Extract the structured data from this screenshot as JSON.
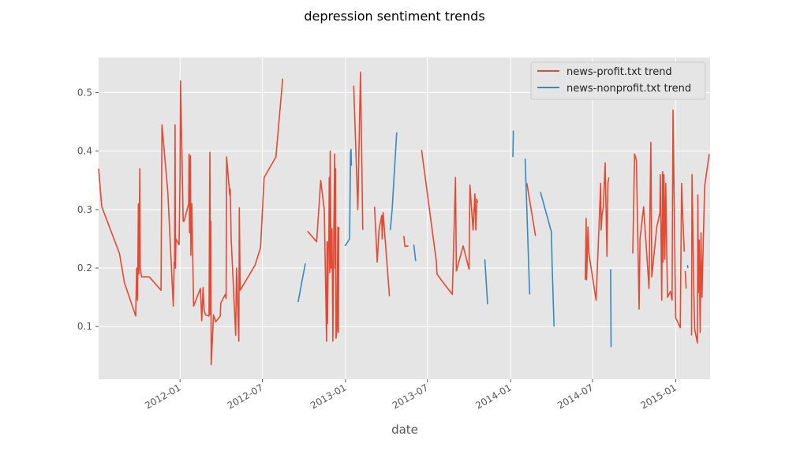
{
  "chart_data": {
    "type": "line",
    "title": "depression sentiment trends",
    "xlabel": "date",
    "ylabel": "",
    "x_ticks": [
      "2012-01",
      "2012-07",
      "2013-01",
      "2013-07",
      "2014-01",
      "2014-07",
      "2015-01"
    ],
    "y_ticks": [
      "0.1",
      "0.2",
      "0.3",
      "0.4",
      "0.5"
    ],
    "xlim": [
      "2011-07-05",
      "2015-03-18"
    ],
    "ylim": [
      0.01,
      0.56
    ],
    "grid": true,
    "legend_position": "top-right",
    "series": [
      {
        "name": "news-profit.txt trend",
        "color": "#E24A33",
        "segments": [
          [
            [
              "2011-07-05",
              0.37
            ],
            [
              "2011-07-12",
              0.305
            ],
            [
              "2011-08-20",
              0.225
            ],
            [
              "2011-08-30",
              0.18
            ],
            [
              "2011-08-31",
              0.175
            ],
            [
              "2011-09-25",
              0.118
            ],
            [
              "2011-09-27",
              0.2
            ],
            [
              "2011-09-29",
              0.145
            ],
            [
              "2011-10-01",
              0.31
            ],
            [
              "2011-10-02",
              0.19
            ],
            [
              "2011-10-04",
              0.37
            ],
            [
              "2011-10-05",
              0.2
            ],
            [
              "2011-10-08",
              0.185
            ],
            [
              "2011-10-25",
              0.185
            ],
            [
              "2011-11-20",
              0.162
            ],
            [
              "2011-11-22",
              0.445
            ],
            [
              "2011-12-05",
              0.33
            ],
            [
              "2011-12-15",
              0.17
            ],
            [
              "2011-12-17",
              0.135
            ],
            [
              "2011-12-19",
              0.21
            ],
            [
              "2011-12-20",
              0.205
            ],
            [
              "2011-12-21",
              0.445
            ],
            [
              "2011-12-22",
              0.2
            ],
            [
              "2011-12-23",
              0.25
            ],
            [
              "2011-12-30",
              0.24
            ],
            [
              "2012-01-01",
              0.36
            ],
            [
              "2012-01-02",
              0.52
            ],
            [
              "2012-01-08",
              0.28
            ],
            [
              "2012-01-10",
              0.28
            ],
            [
              "2012-01-20",
              0.31
            ],
            [
              "2012-01-21",
              0.395
            ],
            [
              "2012-01-22",
              0.26
            ],
            [
              "2012-01-24",
              0.392
            ],
            [
              "2012-01-25",
              0.222
            ],
            [
              "2012-01-27",
              0.31
            ],
            [
              "2012-01-31",
              0.135
            ],
            [
              "2012-02-15",
              0.165
            ],
            [
              "2012-02-18",
              0.11
            ],
            [
              "2012-02-21",
              0.167
            ],
            [
              "2012-02-23",
              0.13
            ],
            [
              "2012-02-26",
              0.12
            ],
            [
              "2012-03-05",
              0.118
            ],
            [
              "2012-03-07",
              0.398
            ],
            [
              "2012-03-08",
              0.12
            ],
            [
              "2012-03-09",
              0.28
            ],
            [
              "2012-03-10",
              0.035
            ],
            [
              "2012-03-15",
              0.12
            ],
            [
              "2012-03-20",
              0.108
            ],
            [
              "2012-03-30",
              0.118
            ],
            [
              "2012-03-31",
              0.14
            ],
            [
              "2012-04-10",
              0.155
            ],
            [
              "2012-04-12",
              0.148
            ],
            [
              "2012-04-13",
              0.39
            ],
            [
              "2012-04-20",
              0.325
            ],
            [
              "2012-04-21",
              0.335
            ],
            [
              "2012-04-23",
              0.25
            ],
            [
              "2012-05-03",
              0.085
            ],
            [
              "2012-05-05",
              0.2
            ],
            [
              "2012-05-10",
              0.075
            ],
            [
              "2012-05-11",
              0.303
            ],
            [
              "2012-05-13",
              0.162
            ],
            [
              "2012-06-15",
              0.205
            ],
            [
              "2012-06-27",
              0.235
            ],
            [
              "2012-07-05",
              0.355
            ],
            [
              "2012-07-31",
              0.39
            ],
            [
              "2012-08-15",
              0.524
            ]
          ],
          [
            [
              "2012-10-09",
              0.263
            ],
            [
              "2012-10-29",
              0.245
            ],
            [
              "2012-11-07",
              0.35
            ],
            [
              "2012-11-15",
              0.3
            ],
            [
              "2012-11-20",
              0.075
            ],
            [
              "2012-11-21",
              0.245
            ],
            [
              "2012-11-22",
              0.105
            ],
            [
              "2012-11-24",
              0.245
            ],
            [
              "2012-11-25",
              0.24
            ],
            [
              "2012-11-26",
              0.355
            ],
            [
              "2012-11-27",
              0.192
            ],
            [
              "2012-11-28",
              0.4
            ],
            [
              "2012-11-30",
              0.2
            ],
            [
              "2012-12-02",
              0.267
            ],
            [
              "2012-12-04",
              0.075
            ],
            [
              "2012-12-06",
              0.262
            ],
            [
              "2012-12-08",
              0.395
            ],
            [
              "2012-12-09",
              0.2
            ],
            [
              "2012-12-10",
              0.37
            ],
            [
              "2012-12-11",
              0.08
            ],
            [
              "2012-12-13",
              0.095
            ],
            [
              "2012-12-15",
              0.27
            ],
            [
              "2012-12-16",
              0.09
            ],
            [
              "2012-12-17",
              0.27
            ]
          ],
          [
            [
              "2013-01-19",
              0.512
            ],
            [
              "2013-01-28",
              0.3
            ],
            [
              "2013-02-03",
              0.535
            ],
            [
              "2013-02-08",
              0.265
            ]
          ],
          [
            [
              "2013-03-06",
              0.305
            ],
            [
              "2013-03-12",
              0.21
            ],
            [
              "2013-03-16",
              0.265
            ],
            [
              "2013-03-22",
              0.29
            ],
            [
              "2013-03-23",
              0.25
            ],
            [
              "2013-03-25",
              0.295
            ],
            [
              "2013-04-08",
              0.152
            ]
          ],
          [
            [
              "2013-05-10",
              0.255
            ],
            [
              "2013-05-12",
              0.237
            ],
            [
              "2013-05-20",
              0.238
            ]
          ],
          [
            [
              "2013-06-18",
              0.402
            ],
            [
              "2013-07-21",
              0.21
            ],
            [
              "2013-07-22",
              0.19
            ],
            [
              "2013-08-05",
              0.175
            ],
            [
              "2013-08-25",
              0.155
            ],
            [
              "2013-09-01",
              0.355
            ],
            [
              "2013-09-03",
              0.195
            ],
            [
              "2013-09-18",
              0.238
            ],
            [
              "2013-10-01",
              0.198
            ],
            [
              "2013-10-03",
              0.342
            ],
            [
              "2013-10-10",
              0.265
            ],
            [
              "2013-10-14",
              0.327
            ],
            [
              "2013-10-16",
              0.265
            ],
            [
              "2013-10-18",
              0.318
            ],
            [
              "2013-10-20",
              0.312
            ]
          ],
          [
            [
              "2014-02-06",
              0.345
            ],
            [
              "2014-02-25",
              0.255
            ]
          ],
          [
            [
              "2014-06-15",
              0.18
            ],
            [
              "2014-06-17",
              0.285
            ],
            [
              "2014-06-18",
              0.18
            ],
            [
              "2014-06-21",
              0.27
            ],
            [
              "2014-06-23",
              0.225
            ],
            [
              "2014-07-09",
              0.145
            ],
            [
              "2014-07-19",
              0.345
            ],
            [
              "2014-07-20",
              0.265
            ],
            [
              "2014-07-22",
              0.29
            ],
            [
              "2014-07-25",
              0.305
            ],
            [
              "2014-07-29",
              0.38
            ],
            [
              "2014-08-02",
              0.22
            ],
            [
              "2014-08-04",
              0.345
            ],
            [
              "2014-08-06",
              0.355
            ]
          ],
          [
            [
              "2014-09-28",
              0.225
            ],
            [
              "2014-10-02",
              0.395
            ],
            [
              "2014-10-06",
              0.385
            ],
            [
              "2014-10-12",
              0.13
            ],
            [
              "2014-10-14",
              0.25
            ],
            [
              "2014-10-22",
              0.305
            ],
            [
              "2014-11-03",
              0.165
            ],
            [
              "2014-11-05",
              0.3
            ],
            [
              "2014-11-07",
              0.415
            ],
            [
              "2014-11-09",
              0.185
            ],
            [
              "2014-11-20",
              0.27
            ],
            [
              "2014-11-27",
              0.295
            ],
            [
              "2014-11-28",
              0.36
            ],
            [
              "2014-12-01",
              0.145
            ],
            [
              "2014-12-03",
              0.365
            ],
            [
              "2014-12-04",
              0.21
            ],
            [
              "2014-12-06",
              0.36
            ],
            [
              "2014-12-08",
              0.215
            ],
            [
              "2014-12-10",
              0.345
            ],
            [
              "2014-12-12",
              0.23
            ],
            [
              "2014-12-14",
              0.15
            ],
            [
              "2014-12-20",
              0.16
            ],
            [
              "2014-12-24",
              0.145
            ],
            [
              "2014-12-26",
              0.47
            ],
            [
              "2015-01-01",
              0.115
            ],
            [
              "2015-01-11",
              0.098
            ],
            [
              "2015-01-14",
              0.345
            ],
            [
              "2015-01-16",
              0.3
            ],
            [
              "2015-01-20",
              0.228
            ]
          ],
          [
            [
              "2015-01-22",
              0.195
            ],
            [
              "2015-01-24",
              0.165
            ]
          ],
          [
            [
              "2015-02-05",
              0.085
            ],
            [
              "2015-02-06",
              0.36
            ],
            [
              "2015-02-10",
              0.158
            ],
            [
              "2015-02-12",
              0.095
            ],
            [
              "2015-02-18",
              0.072
            ],
            [
              "2015-02-19",
              0.325
            ],
            [
              "2015-02-20",
              0.158
            ],
            [
              "2015-02-22",
              0.248
            ],
            [
              "2015-02-24",
              0.09
            ],
            [
              "2015-02-26",
              0.26
            ],
            [
              "2015-02-28",
              0.15
            ],
            [
              "2015-03-06",
              0.34
            ],
            [
              "2015-03-16",
              0.395
            ]
          ]
        ]
      },
      {
        "name": "news-nonprofit.txt trend",
        "color": "#348ABD",
        "segments": [
          [
            [
              "2012-09-18",
              0.142
            ],
            [
              "2012-10-04",
              0.208
            ]
          ],
          [
            [
              "2012-12-31",
              0.238
            ],
            [
              "2013-01-10",
              0.25
            ],
            [
              "2013-01-12",
              0.398
            ],
            [
              "2013-01-13",
              0.403
            ],
            [
              "2013-01-14",
              0.375
            ]
          ],
          [
            [
              "2013-04-10",
              0.265
            ],
            [
              "2013-04-14",
              0.3
            ],
            [
              "2013-04-24",
              0.432
            ]
          ],
          [
            [
              "2013-06-01",
              0.24
            ],
            [
              "2013-06-05",
              0.212
            ]
          ],
          [
            [
              "2013-11-05",
              0.215
            ],
            [
              "2013-11-11",
              0.138
            ]
          ],
          [
            [
              "2014-01-06",
              0.39
            ],
            [
              "2014-01-07",
              0.435
            ]
          ],
          [
            [
              "2014-02-02",
              0.387
            ],
            [
              "2014-02-12",
              0.155
            ]
          ],
          [
            [
              "2014-03-08",
              0.33
            ],
            [
              "2014-04-01",
              0.262
            ],
            [
              "2014-04-03",
              0.2
            ],
            [
              "2014-04-07",
              0.1
            ]
          ],
          [
            [
              "2014-08-10",
              0.198
            ],
            [
              "2014-08-11",
              0.065
            ]
          ],
          [
            [
              "2015-01-27",
              0.205
            ],
            [
              "2015-01-28",
              0.2
            ]
          ]
        ]
      }
    ]
  }
}
